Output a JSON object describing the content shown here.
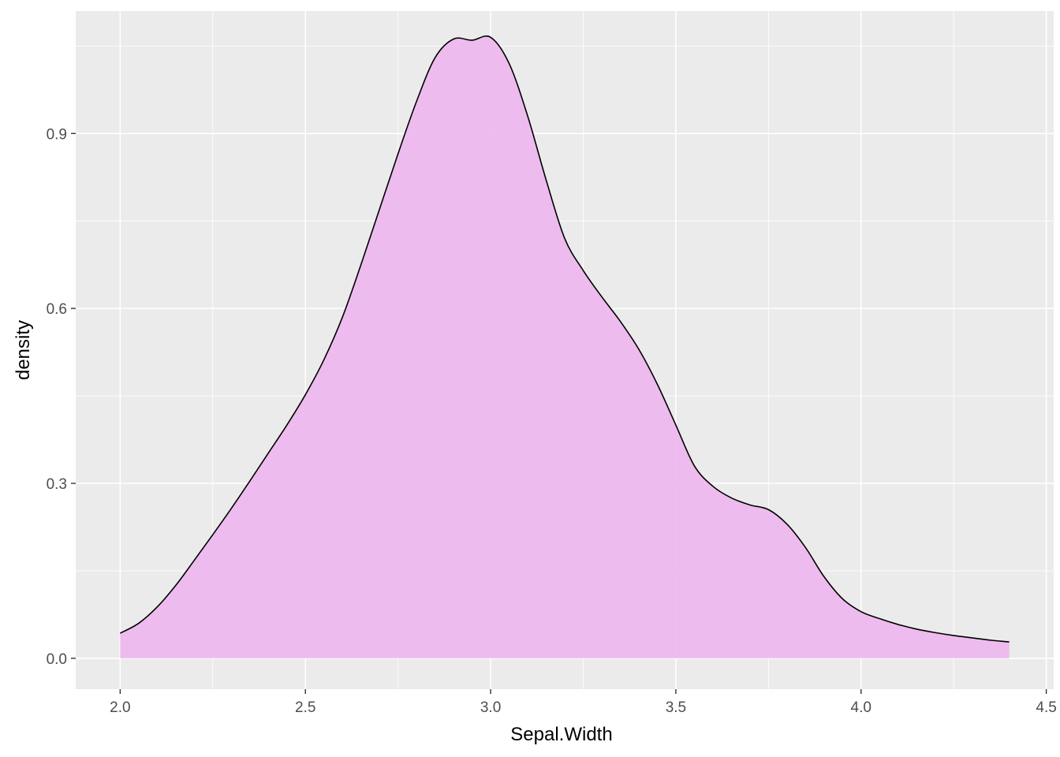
{
  "chart_data": {
    "type": "area",
    "title": "",
    "xlabel": "Sepal.Width",
    "ylabel": "density",
    "xlim": [
      1.88,
      4.52
    ],
    "ylim": [
      -0.053,
      1.11
    ],
    "x_ticks": [
      2.0,
      2.5,
      3.0,
      3.5,
      4.0,
      4.5
    ],
    "x_tick_labels": [
      "2.0",
      "2.5",
      "3.0",
      "3.5",
      "4.0",
      "4.5"
    ],
    "y_ticks": [
      0.0,
      0.3,
      0.6,
      0.9
    ],
    "y_tick_labels": [
      "0.0",
      "0.3",
      "0.6",
      "0.9"
    ],
    "grid": true,
    "legend": "none",
    "fill_color": "#eeb8ee",
    "line_color": "#000000",
    "panel_color": "#ebebeb",
    "series": [
      {
        "x": [
          2.0,
          2.05,
          2.1,
          2.15,
          2.2,
          2.25,
          2.3,
          2.35,
          2.4,
          2.45,
          2.5,
          2.55,
          2.6,
          2.65,
          2.7,
          2.75,
          2.8,
          2.85,
          2.9,
          2.95,
          3.0,
          3.05,
          3.1,
          3.15,
          3.2,
          3.25,
          3.3,
          3.35,
          3.4,
          3.45,
          3.5,
          3.55,
          3.6,
          3.65,
          3.7,
          3.75,
          3.8,
          3.85,
          3.9,
          3.95,
          4.0,
          4.05,
          4.1,
          4.15,
          4.2,
          4.25,
          4.3,
          4.35,
          4.4
        ],
        "values": [
          0.043,
          0.06,
          0.088,
          0.125,
          0.168,
          0.212,
          0.257,
          0.304,
          0.352,
          0.4,
          0.452,
          0.512,
          0.585,
          0.675,
          0.77,
          0.865,
          0.955,
          1.03,
          1.062,
          1.06,
          1.065,
          1.02,
          0.93,
          0.82,
          0.72,
          0.665,
          0.62,
          0.578,
          0.53,
          0.47,
          0.4,
          0.33,
          0.295,
          0.275,
          0.263,
          0.255,
          0.23,
          0.19,
          0.14,
          0.102,
          0.08,
          0.068,
          0.058,
          0.05,
          0.044,
          0.039,
          0.035,
          0.031,
          0.028
        ]
      }
    ]
  }
}
